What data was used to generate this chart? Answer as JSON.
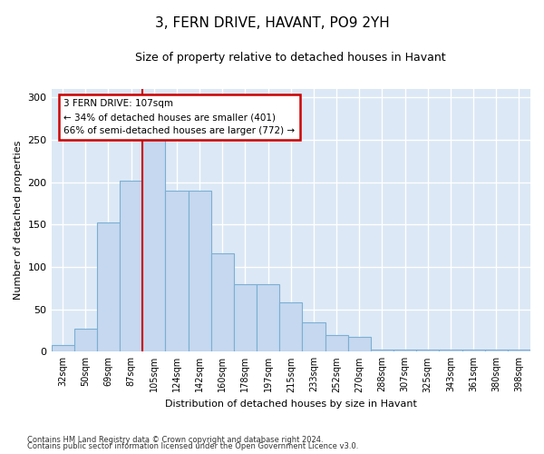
{
  "title_line1": "3, FERN DRIVE, HAVANT, PO9 2YH",
  "title_line2": "Size of property relative to detached houses in Havant",
  "xlabel": "Distribution of detached houses by size in Havant",
  "ylabel": "Number of detached properties",
  "bar_labels": [
    "32sqm",
    "50sqm",
    "69sqm",
    "87sqm",
    "105sqm",
    "124sqm",
    "142sqm",
    "160sqm",
    "178sqm",
    "197sqm",
    "215sqm",
    "233sqm",
    "252sqm",
    "270sqm",
    "288sqm",
    "307sqm",
    "325sqm",
    "343sqm",
    "361sqm",
    "380sqm",
    "398sqm"
  ],
  "bar_heights": [
    8,
    27,
    153,
    202,
    250,
    190,
    190,
    116,
    80,
    80,
    58,
    35,
    20,
    18,
    3,
    3,
    3,
    3,
    3,
    3,
    2
  ],
  "bar_color": "#c5d8ef",
  "bar_edge_color": "#7bafd4",
  "vline_color": "#cc0000",
  "annotation_text": "3 FERN DRIVE: 107sqm\n← 34% of detached houses are smaller (401)\n66% of semi-detached houses are larger (772) →",
  "annotation_box_color": "white",
  "annotation_box_edge": "#cc0000",
  "ylim": [
    0,
    310
  ],
  "yticks": [
    0,
    50,
    100,
    150,
    200,
    250,
    300
  ],
  "background_color": "#dce8f5",
  "grid_color": "white",
  "footer_line1": "Contains HM Land Registry data © Crown copyright and database right 2024.",
  "footer_line2": "Contains public sector information licensed under the Open Government Licence v3.0."
}
